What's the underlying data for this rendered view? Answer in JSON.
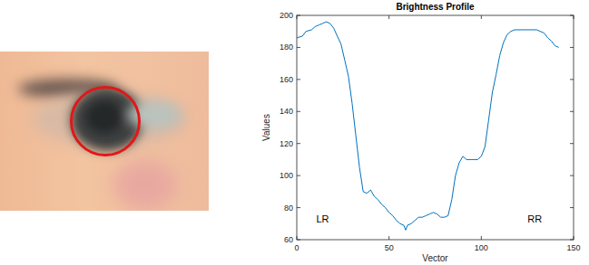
{
  "chart_data": {
    "type": "line",
    "title": "Brightness Profile",
    "x_label": "Vector",
    "y_label": "Values",
    "x": [
      0,
      3,
      5,
      8,
      10,
      12,
      14,
      16,
      18,
      20,
      22,
      24,
      26,
      28,
      30,
      32,
      34,
      36,
      38,
      40,
      42,
      44,
      46,
      48,
      50,
      52,
      54,
      56,
      58,
      59,
      60,
      62,
      64,
      66,
      68,
      70,
      72,
      74,
      76,
      78,
      80,
      82,
      84,
      86,
      88,
      90,
      92,
      94,
      96,
      98,
      100,
      102,
      104,
      106,
      108,
      110,
      112,
      114,
      116,
      118,
      120,
      125,
      130,
      134,
      136,
      138,
      140,
      142
    ],
    "series": [
      {
        "name": "Brightness",
        "color": "#0072bd",
        "values": [
          186,
          187,
          190,
          191,
          193,
          194,
          195,
          196,
          195,
          192,
          187,
          182,
          172,
          162,
          145,
          125,
          105,
          90,
          89,
          91,
          87,
          85,
          82,
          80,
          77,
          75,
          72,
          70,
          69,
          66,
          69,
          70,
          72,
          74,
          74,
          75,
          76,
          77,
          76,
          74,
          74,
          75,
          85,
          100,
          108,
          112,
          110,
          110,
          110,
          110,
          112,
          118,
          135,
          152,
          163,
          175,
          183,
          188,
          190,
          191,
          191,
          191,
          191,
          189,
          186,
          184,
          181,
          180
        ]
      }
    ],
    "xlim": [
      0,
      150
    ],
    "xticks": [
      0,
      50,
      100,
      150
    ],
    "ylim": [
      60,
      200
    ],
    "yticks": [
      60,
      80,
      100,
      120,
      140,
      160,
      180,
      200
    ],
    "grid": false,
    "annotations": [
      {
        "text": "LR",
        "x": 14,
        "y": 71
      },
      {
        "text": "RR",
        "x": 129,
        "y": 71
      }
    ]
  }
}
